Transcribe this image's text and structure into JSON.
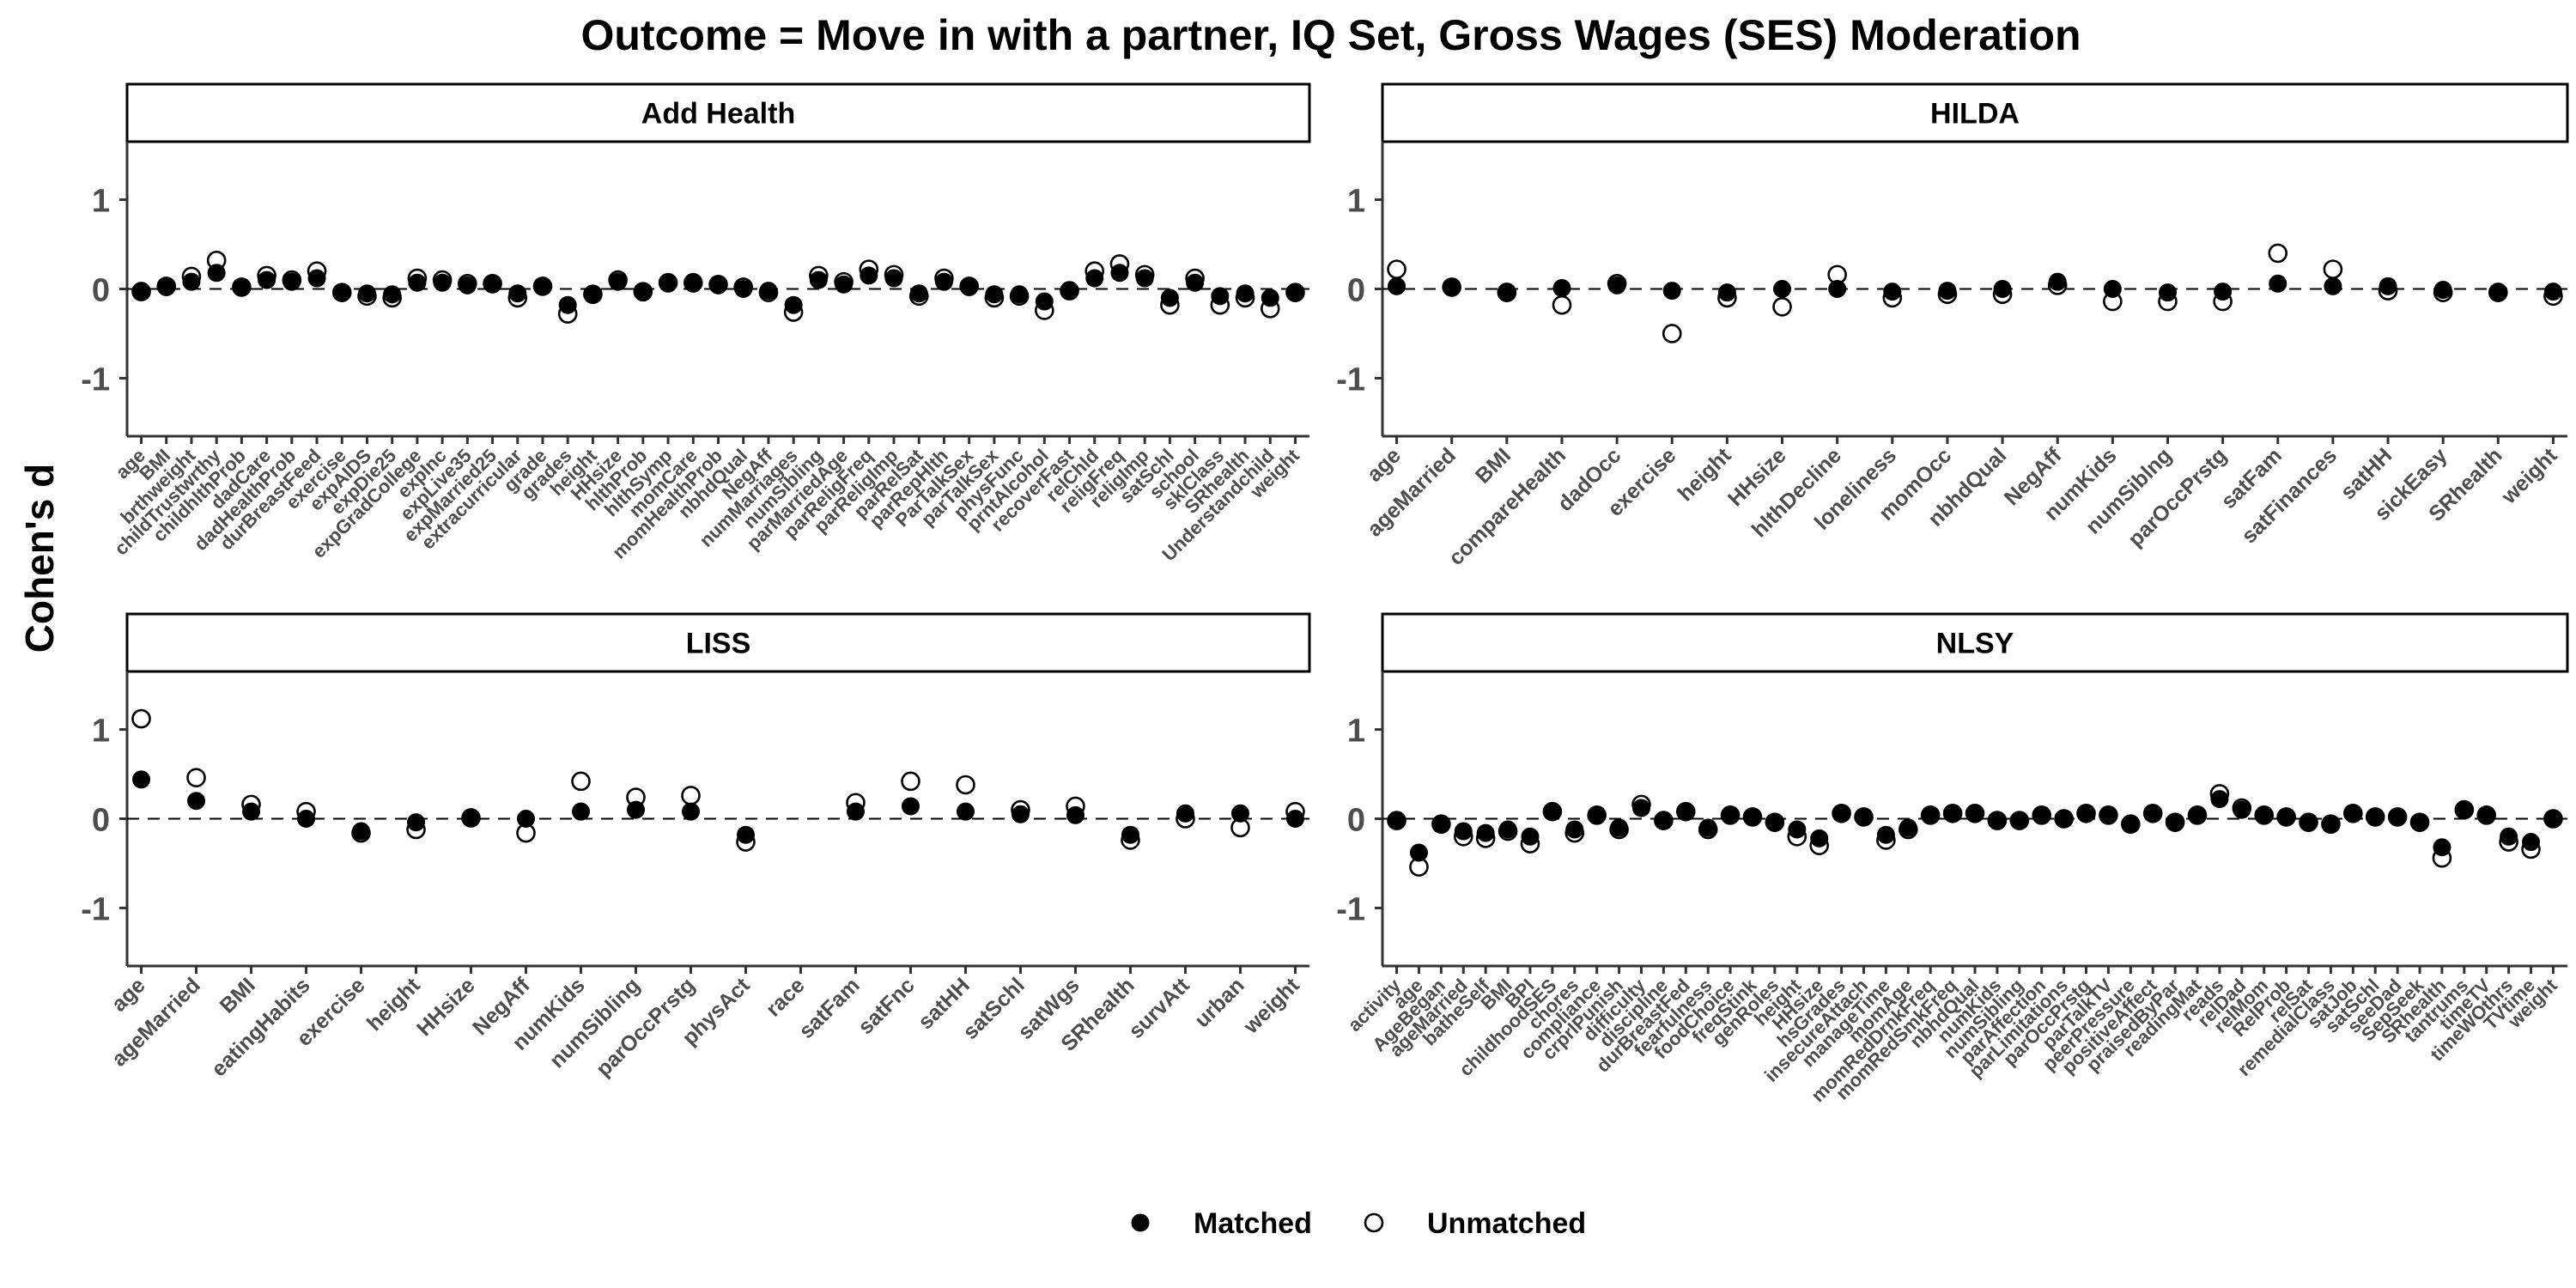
{
  "chart_data": {
    "type": "scatter",
    "title": "Outcome = Move in with a partner, IQ Set, Gross Wages (SES) Moderation",
    "ylabel": "Cohen's d",
    "xlabel": "",
    "ylim": [
      -1.65,
      1.65
    ],
    "yticks": [
      -1,
      0,
      1
    ],
    "reference_line": 0,
    "grid": false,
    "legend": {
      "placement": "bottom",
      "entries": [
        {
          "name": "Matched",
          "marker": "filled-circle"
        },
        {
          "name": "Unmatched",
          "marker": "open-circle"
        }
      ]
    },
    "colors": {
      "marker": "#000000",
      "axis": "#333333",
      "text": "#4d4d4d"
    },
    "panels": [
      {
        "strip": "Add Health",
        "categories": [
          "age",
          "BMI",
          "brthweight",
          "childTrustwrthy",
          "childhlthProb",
          "dadCare",
          "dadHealthProb",
          "durBreastFeed",
          "exercise",
          "expAIDS",
          "expDie25",
          "expGradCollege",
          "expInc",
          "expLive35",
          "expMarried25",
          "extracurricular",
          "grade",
          "grades",
          "height",
          "HHsize",
          "hlthProb",
          "hlthSymp",
          "momCare",
          "momHealthProb",
          "nbhdQual",
          "NegAff",
          "numMarriages",
          "numSibling",
          "parMarriedAge",
          "parReligFreq",
          "parReligImp",
          "parRelSat",
          "parRepHlth",
          "ParTalkSex",
          "parTalkSex",
          "physFunc",
          "prntAlcohol",
          "recoverFast",
          "relChld",
          "religFreq",
          "religImp",
          "satSchl",
          "school",
          "sklClass",
          "SRhealth",
          "Understandchild",
          "weight"
        ],
        "matched": [
          -0.02,
          0.02,
          0.08,
          0.18,
          0.02,
          0.1,
          0.08,
          0.12,
          -0.04,
          -0.05,
          -0.06,
          0.07,
          0.07,
          0.04,
          0.05,
          -0.05,
          0.03,
          -0.18,
          -0.06,
          0.08,
          -0.04,
          0.06,
          0.06,
          0.04,
          0.0,
          -0.02,
          -0.18,
          0.1,
          0.05,
          0.15,
          0.12,
          -0.05,
          0.08,
          0.02,
          -0.06,
          -0.06,
          -0.14,
          -0.02,
          0.12,
          0.18,
          0.12,
          -0.1,
          0.07,
          -0.08,
          -0.05,
          -0.1,
          -0.04
        ],
        "unmatched": [
          -0.03,
          0.03,
          0.14,
          0.32,
          0.02,
          0.15,
          0.1,
          0.2,
          -0.04,
          -0.08,
          -0.1,
          0.12,
          0.1,
          0.06,
          0.06,
          -0.1,
          0.03,
          -0.28,
          -0.06,
          0.1,
          -0.03,
          0.07,
          0.07,
          0.05,
          0.02,
          -0.04,
          -0.26,
          0.15,
          0.08,
          0.22,
          0.16,
          -0.08,
          0.12,
          0.03,
          -0.1,
          -0.08,
          -0.24,
          -0.02,
          0.2,
          0.28,
          0.16,
          -0.18,
          0.12,
          -0.18,
          -0.1,
          -0.22,
          -0.04
        ]
      },
      {
        "strip": "HILDA",
        "categories": [
          "age",
          "ageMarried",
          "BMI",
          "compareHealth",
          "dadOcc",
          "exercise",
          "height",
          "HHsize",
          "hlthDecline",
          "loneliness",
          "momOcc",
          "nbhdQual",
          "NegAff",
          "numKids",
          "numSiblng",
          "parOccPrstg",
          "satFam",
          "satFinances",
          "satHH",
          "sickEasy",
          "SRhealth",
          "weight"
        ],
        "matched": [
          0.03,
          0.02,
          -0.03,
          0.01,
          0.04,
          -0.02,
          -0.04,
          0.0,
          0.0,
          -0.03,
          -0.02,
          0.0,
          0.08,
          0.0,
          -0.04,
          -0.03,
          0.06,
          0.03,
          0.03,
          -0.01,
          -0.03,
          -0.03
        ],
        "unmatched": [
          0.22,
          0.02,
          -0.04,
          -0.18,
          0.06,
          -0.5,
          -0.1,
          -0.2,
          0.16,
          -0.1,
          -0.06,
          -0.06,
          0.04,
          -0.14,
          -0.14,
          -0.14,
          0.4,
          0.22,
          -0.02,
          -0.04,
          -0.04,
          -0.08
        ]
      },
      {
        "strip": "LISS",
        "categories": [
          "age",
          "ageMarried",
          "BMI",
          "eatingHabits",
          "exercise",
          "height",
          "HHsize",
          "NegAff",
          "numKids",
          "numSibling",
          "parOccPrstg",
          "physAct",
          "race",
          "satFam",
          "satFnc",
          "satHH",
          "satSchl",
          "satWgs",
          "SRhealth",
          "survAtt",
          "urban",
          "weight"
        ],
        "matched": [
          0.44,
          0.2,
          0.08,
          0.0,
          -0.14,
          -0.04,
          0.01,
          0.0,
          0.08,
          0.1,
          0.08,
          -0.18,
          null,
          0.08,
          0.14,
          0.08,
          0.05,
          0.04,
          -0.18,
          0.06,
          0.06,
          0.0
        ],
        "unmatched": [
          1.12,
          0.46,
          0.16,
          0.08,
          -0.16,
          -0.12,
          0.01,
          -0.16,
          0.42,
          0.24,
          0.26,
          -0.26,
          null,
          0.18,
          0.42,
          0.38,
          0.1,
          0.14,
          -0.24,
          0.0,
          -0.1,
          0.08
        ]
      },
      {
        "strip": "NLSY",
        "categories": [
          "activity",
          "age",
          "AgeBegan",
          "ageMarried",
          "batheSelf",
          "BMI",
          "BPI",
          "childhoodSES",
          "chores",
          "compliance",
          "crprlPunish",
          "difficulty",
          "discipline",
          "durBreastFed",
          "fearfulness",
          "foodChoice",
          "freqStink",
          "genRoles",
          "height",
          "HHsize",
          "hsGrades",
          "insecureAttach",
          "manageTime",
          "momAge",
          "momRedDrnkFreq",
          "momRedSmkFreq",
          "nbhdQual",
          "numKids",
          "numSibling",
          "parAffection",
          "parLimitations",
          "parOccPrstg",
          "parTalkTV",
          "peerPressure",
          "positiveAffect",
          "praisedByPar",
          "readingMat",
          "reads",
          "relDad",
          "relMom",
          "RelProb",
          "relSat",
          "remedialClass",
          "satJob",
          "satSchl",
          "seeDad",
          "SepSeek",
          "SRhealth",
          "tantrums",
          "timeTV",
          "timeWOthrs",
          "TVtime",
          "weight"
        ],
        "matched": [
          -0.02,
          -0.38,
          -0.06,
          -0.14,
          -0.16,
          -0.12,
          -0.2,
          0.08,
          -0.12,
          0.04,
          -0.1,
          0.12,
          -0.02,
          0.08,
          -0.1,
          0.04,
          0.02,
          -0.04,
          -0.12,
          -0.22,
          0.06,
          0.02,
          -0.18,
          -0.1,
          0.04,
          0.06,
          0.06,
          -0.02,
          -0.02,
          0.04,
          0.0,
          0.06,
          0.04,
          -0.06,
          0.06,
          -0.04,
          0.04,
          0.22,
          0.1,
          0.04,
          0.02,
          -0.04,
          -0.06,
          0.06,
          0.02,
          0.02,
          -0.04,
          -0.32,
          0.1,
          0.04,
          -0.2,
          -0.26,
          0.0
        ],
        "unmatched": [
          -0.02,
          -0.54,
          -0.06,
          -0.2,
          -0.22,
          -0.14,
          -0.28,
          0.08,
          -0.16,
          0.04,
          -0.12,
          0.16,
          -0.02,
          0.08,
          -0.12,
          0.04,
          0.02,
          -0.04,
          -0.2,
          -0.3,
          0.06,
          0.02,
          -0.24,
          -0.12,
          0.04,
          0.06,
          0.06,
          -0.02,
          -0.02,
          0.04,
          0.0,
          0.06,
          0.04,
          -0.06,
          0.06,
          -0.04,
          0.04,
          0.28,
          0.12,
          0.04,
          0.02,
          -0.04,
          -0.06,
          0.06,
          0.02,
          0.02,
          -0.04,
          -0.44,
          0.1,
          0.04,
          -0.26,
          -0.34,
          0.0
        ]
      }
    ]
  }
}
